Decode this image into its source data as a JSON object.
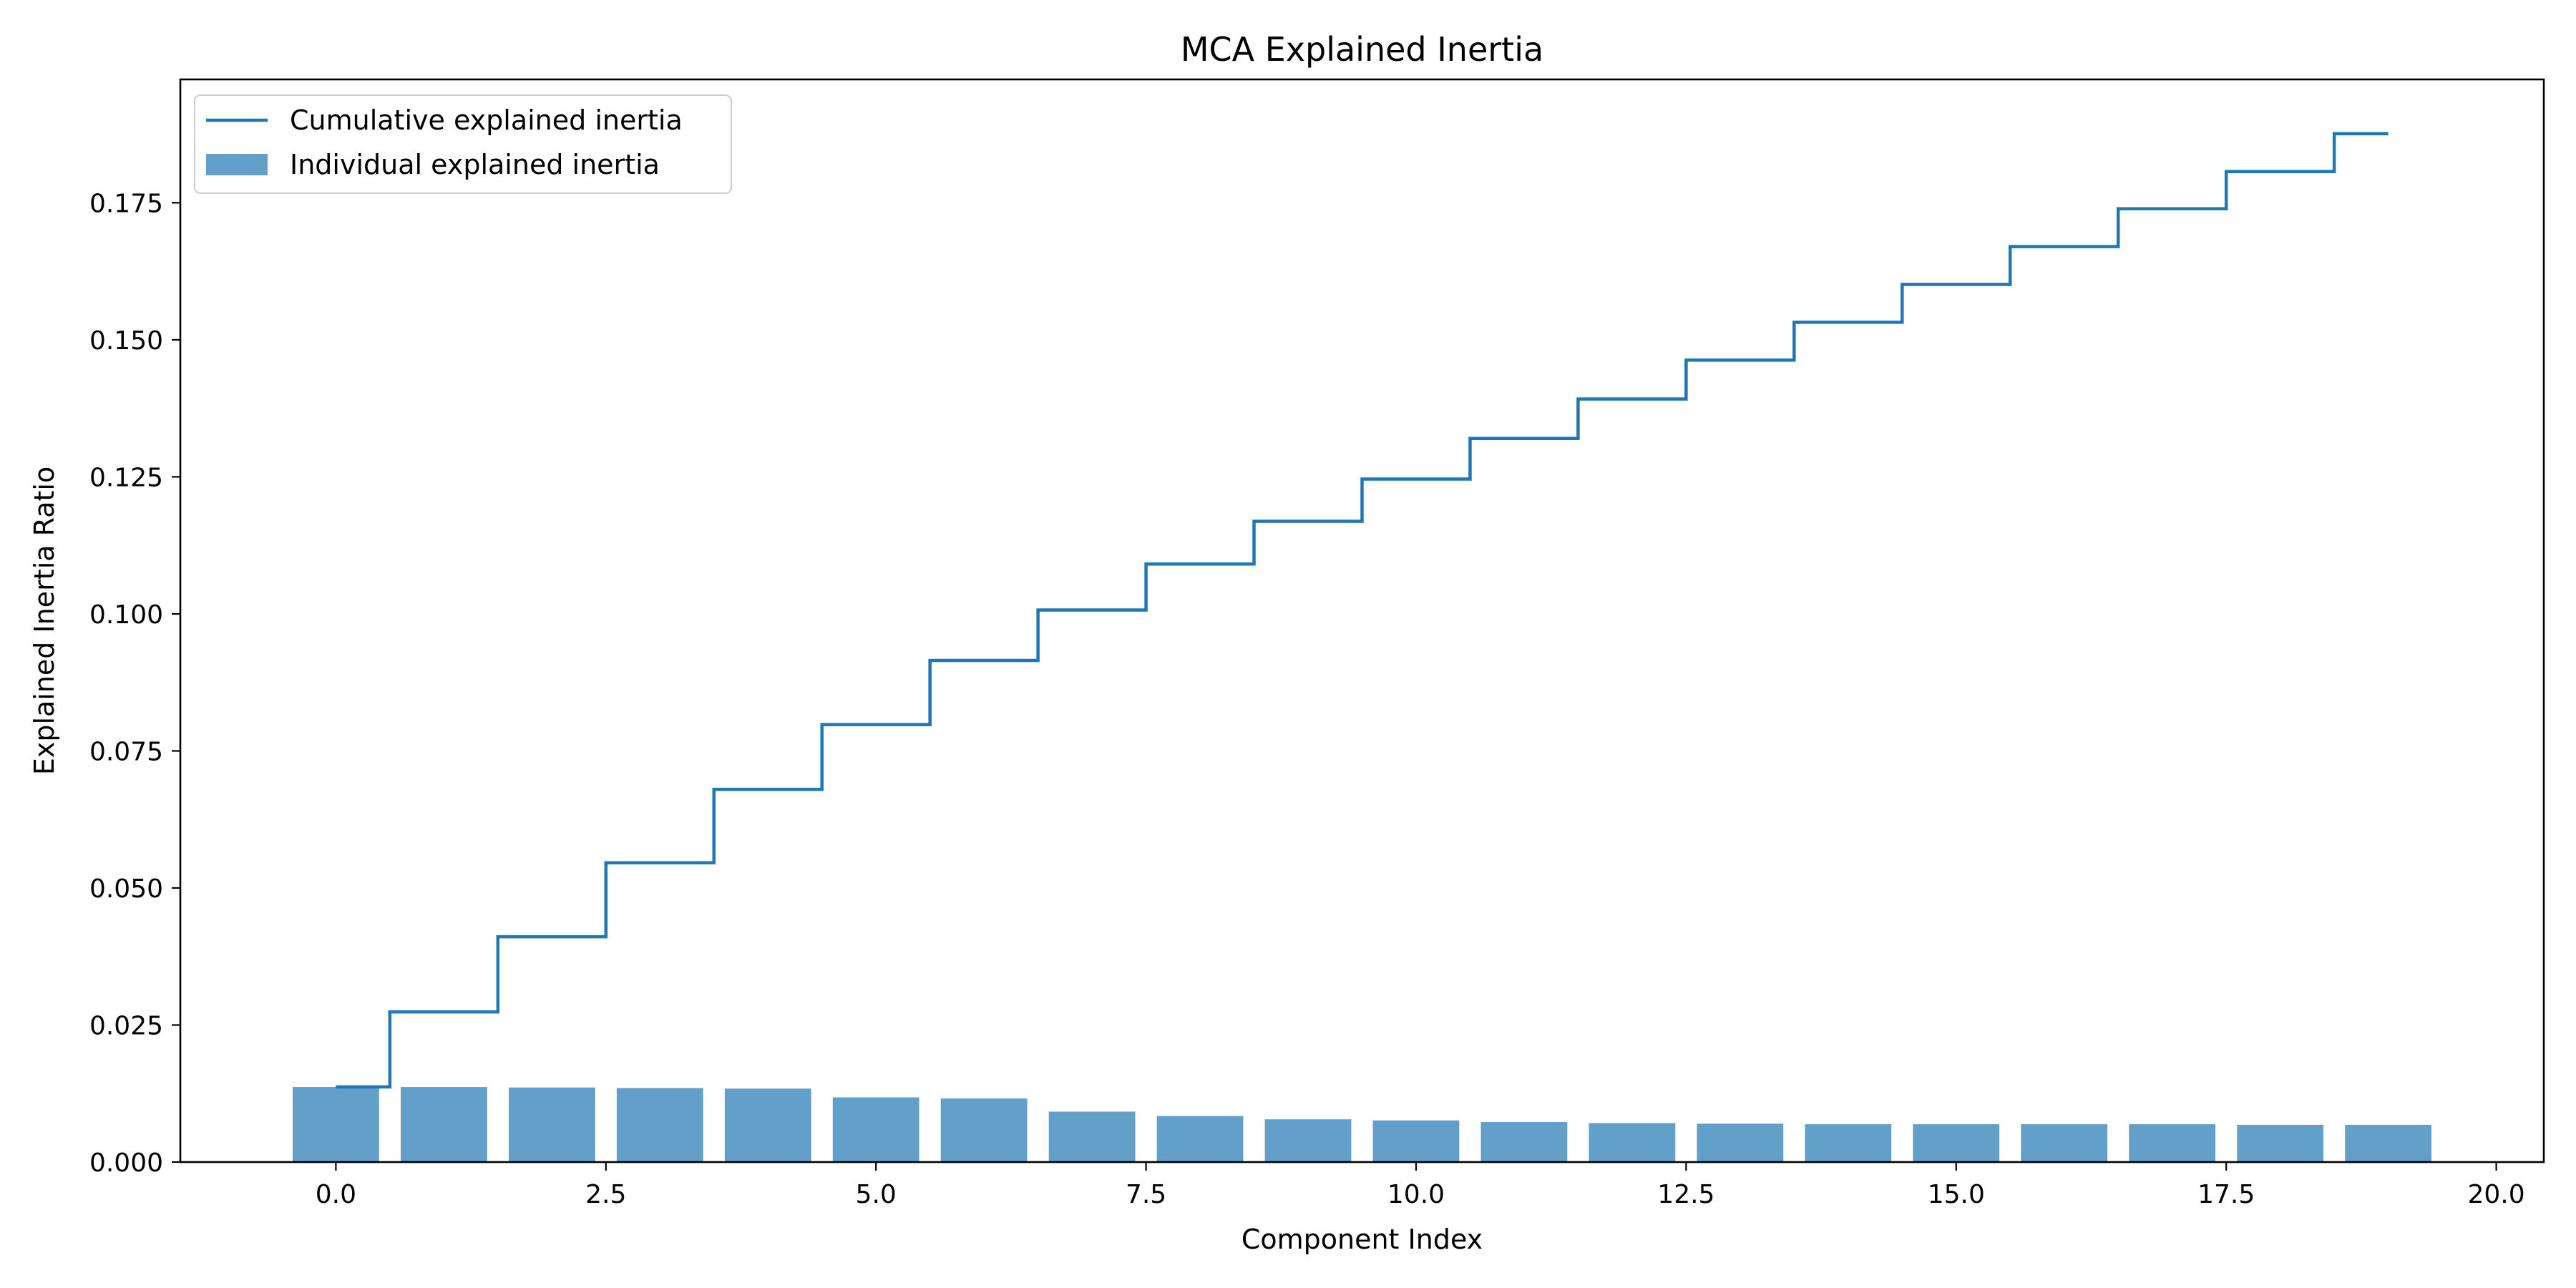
{
  "chart_data": {
    "type": "bar",
    "title": "MCA Explained Inertia",
    "xlabel": "Component Index",
    "ylabel": "Explained Inertia Ratio",
    "xlim": [
      -1.44,
      20.44
    ],
    "ylim": [
      0.0,
      0.1975
    ],
    "x_ticks": [
      0.0,
      2.5,
      5.0,
      7.5,
      10.0,
      12.5,
      15.0,
      17.5,
      20.0
    ],
    "x_tick_labels": [
      "0.0",
      "2.5",
      "5.0",
      "7.5",
      "10.0",
      "12.5",
      "15.0",
      "17.5",
      "20.0"
    ],
    "y_ticks": [
      0.0,
      0.025,
      0.05,
      0.075,
      0.1,
      0.125,
      0.15,
      0.175
    ],
    "y_tick_labels": [
      "0.000",
      "0.025",
      "0.050",
      "0.075",
      "0.100",
      "0.125",
      "0.150",
      "0.175"
    ],
    "grid": false,
    "legend_position": "top-left",
    "x": [
      0,
      1,
      2,
      3,
      4,
      5,
      6,
      7,
      8,
      9,
      10,
      11,
      12,
      13,
      14,
      15,
      16,
      17,
      18,
      19
    ],
    "series": [
      {
        "name": "Cumulative explained inertia",
        "type": "step",
        "color": "#1f77b4",
        "values": [
          0.0137,
          0.0274,
          0.0411,
          0.0546,
          0.068,
          0.0798,
          0.0915,
          0.1007,
          0.1091,
          0.1169,
          0.1246,
          0.132,
          0.1392,
          0.1463,
          0.1532,
          0.1601,
          0.167,
          0.1739,
          0.1807,
          0.1876
        ]
      },
      {
        "name": "Individual explained inertia",
        "type": "bar",
        "color": "#1f77b4",
        "alpha": 0.7,
        "values": [
          0.0137,
          0.0137,
          0.0136,
          0.0135,
          0.0134,
          0.0118,
          0.0116,
          0.0092,
          0.0084,
          0.0078,
          0.0076,
          0.0073,
          0.0071,
          0.007,
          0.0069,
          0.0069,
          0.0069,
          0.0069,
          0.0068,
          0.0068
        ]
      }
    ]
  }
}
